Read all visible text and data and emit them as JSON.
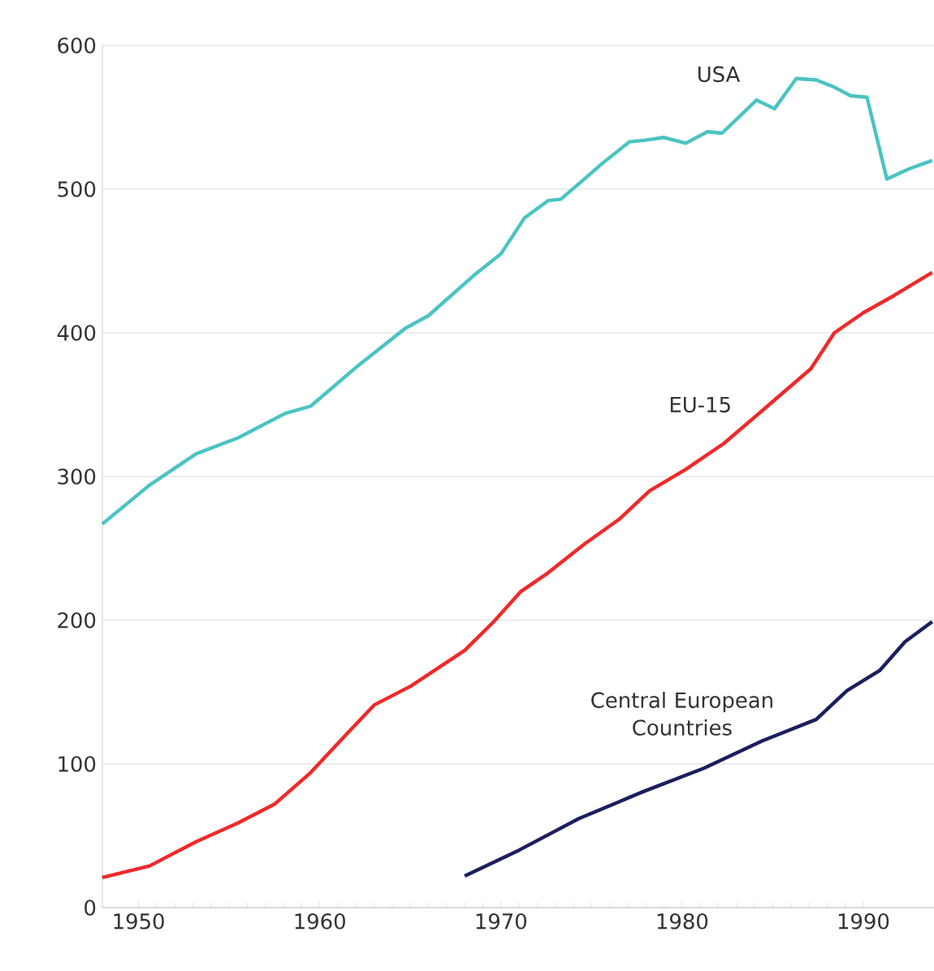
{
  "chart_data": {
    "type": "line",
    "xlim": [
      1948,
      1993.9
    ],
    "ylim": [
      0,
      600
    ],
    "xticks": [
      1950,
      1960,
      1970,
      1980,
      1990
    ],
    "yticks": [
      0,
      100,
      200,
      300,
      400,
      500,
      600
    ],
    "grid": "y",
    "legend": false,
    "marker": "none",
    "line_style": "solid",
    "series": [
      {
        "name": "USA",
        "color": "#4cc3c3",
        "x": [
          1948,
          1950.6,
          1953.2,
          1955.5,
          1958.1,
          1959.5,
          1962.1,
          1964.7,
          1966,
          1968.6,
          1970,
          1971.3,
          1972.6,
          1973.3,
          1974.6,
          1975.6,
          1977.1,
          1977.9,
          1979,
          1980.2,
          1981.4,
          1982.2,
          1983.2,
          1984.1,
          1985.1,
          1986.3,
          1987.4,
          1988.4,
          1989.3,
          1990.2,
          1991.3,
          1992.5,
          1993.8
        ],
        "values": [
          267,
          294,
          316,
          327,
          344,
          349,
          377,
          403,
          412,
          441,
          455,
          480,
          492,
          493,
          507,
          518,
          533,
          534,
          536,
          532,
          540,
          539,
          551,
          562,
          556,
          577,
          576,
          571,
          565,
          564,
          507,
          514,
          520
        ]
      },
      {
        "name": "EU-15",
        "color": "#ee2a2a",
        "x": [
          1948,
          1950.6,
          1953.2,
          1955.5,
          1957.5,
          1959.5,
          1961.5,
          1963,
          1965,
          1968,
          1969.6,
          1971.1,
          1972.6,
          1974.6,
          1976.5,
          1978.2,
          1980.2,
          1982.3,
          1984.8,
          1987.1,
          1988.4,
          1990,
          1991.7,
          1993.8
        ],
        "values": [
          21,
          29,
          46,
          59,
          72,
          94,
          121,
          141,
          154,
          179,
          199,
          220,
          233,
          253,
          270,
          290,
          305,
          323,
          350,
          375,
          400,
          414,
          426,
          442
        ]
      },
      {
        "name": "Central European Countries",
        "color": "#1a1f5e",
        "x": [
          1968,
          1971,
          1974.3,
          1977.9,
          1981.2,
          1984.4,
          1987.4,
          1989.1,
          1990.9,
          1992.3,
          1993.8
        ],
        "values": [
          22,
          40,
          62,
          81,
          97,
          116,
          131,
          151,
          165,
          185,
          199
        ]
      }
    ]
  }
}
